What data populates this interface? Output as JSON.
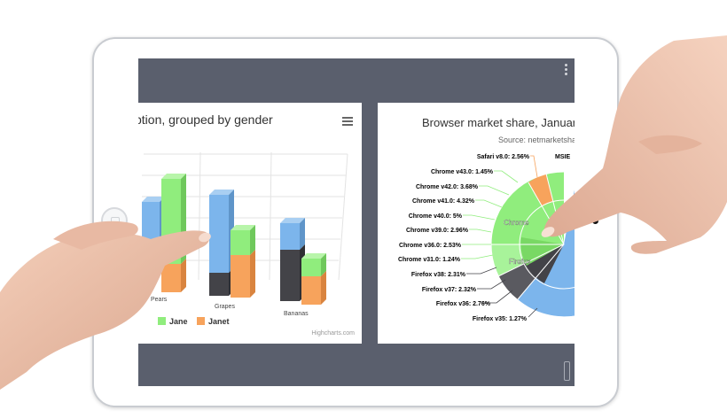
{
  "left_chart": {
    "title": "ption, grouped by gender",
    "credits": "Highcharts.com",
    "chart_data": {
      "type": "bar",
      "categories": [
        "Pears",
        "Grapes",
        "Bananas"
      ],
      "series": [
        {
          "name": "Jane",
          "values": [
            null,
            6,
            2
          ],
          "color": "#90ed7d"
        },
        {
          "name": "Janet",
          "values": [
            null,
            2,
            2
          ],
          "color": "#f7a35c"
        }
      ],
      "legend": [
        "Jane",
        "Janet"
      ],
      "colors": {
        "blue": "#7cb5ec",
        "dark": "#434348",
        "green": "#90ed7d",
        "orange": "#f7a35c"
      }
    }
  },
  "right_chart": {
    "title": "Browser market share, January,",
    "subtitle": "Source: netmarketshar",
    "chart_data": {
      "type": "pie",
      "center_labels": [
        "Chrome",
        "Firefox"
      ],
      "slices": [
        {
          "label": "Safari v8.0: 2.56%",
          "value": 2.56
        },
        {
          "label": "MSIE",
          "value": null
        },
        {
          "label": "Chrome v43.0: 1.45%",
          "value": 1.45
        },
        {
          "label": "Chrome v42.0: 3.68%",
          "value": 3.68
        },
        {
          "label": "Chrome v41.0: 4.32%",
          "value": 4.32
        },
        {
          "label": "Chrome v40.0: 5%",
          "value": 5
        },
        {
          "label": "Chrome v39.0: 2.96%",
          "value": 2.96
        },
        {
          "label": "Chrome v36.0: 2.53%",
          "value": 2.53
        },
        {
          "label": "Chrome v31.0: 1.24%",
          "value": 1.24
        },
        {
          "label": "Firefox v38: 2.31%",
          "value": 2.31
        },
        {
          "label": "Firefox v37: 2.32%",
          "value": 2.32
        },
        {
          "label": "Firefox v36: 2.76%",
          "value": 2.76
        },
        {
          "label": "Firefox v35: 1.27%",
          "value": 1.27
        }
      ]
    }
  }
}
